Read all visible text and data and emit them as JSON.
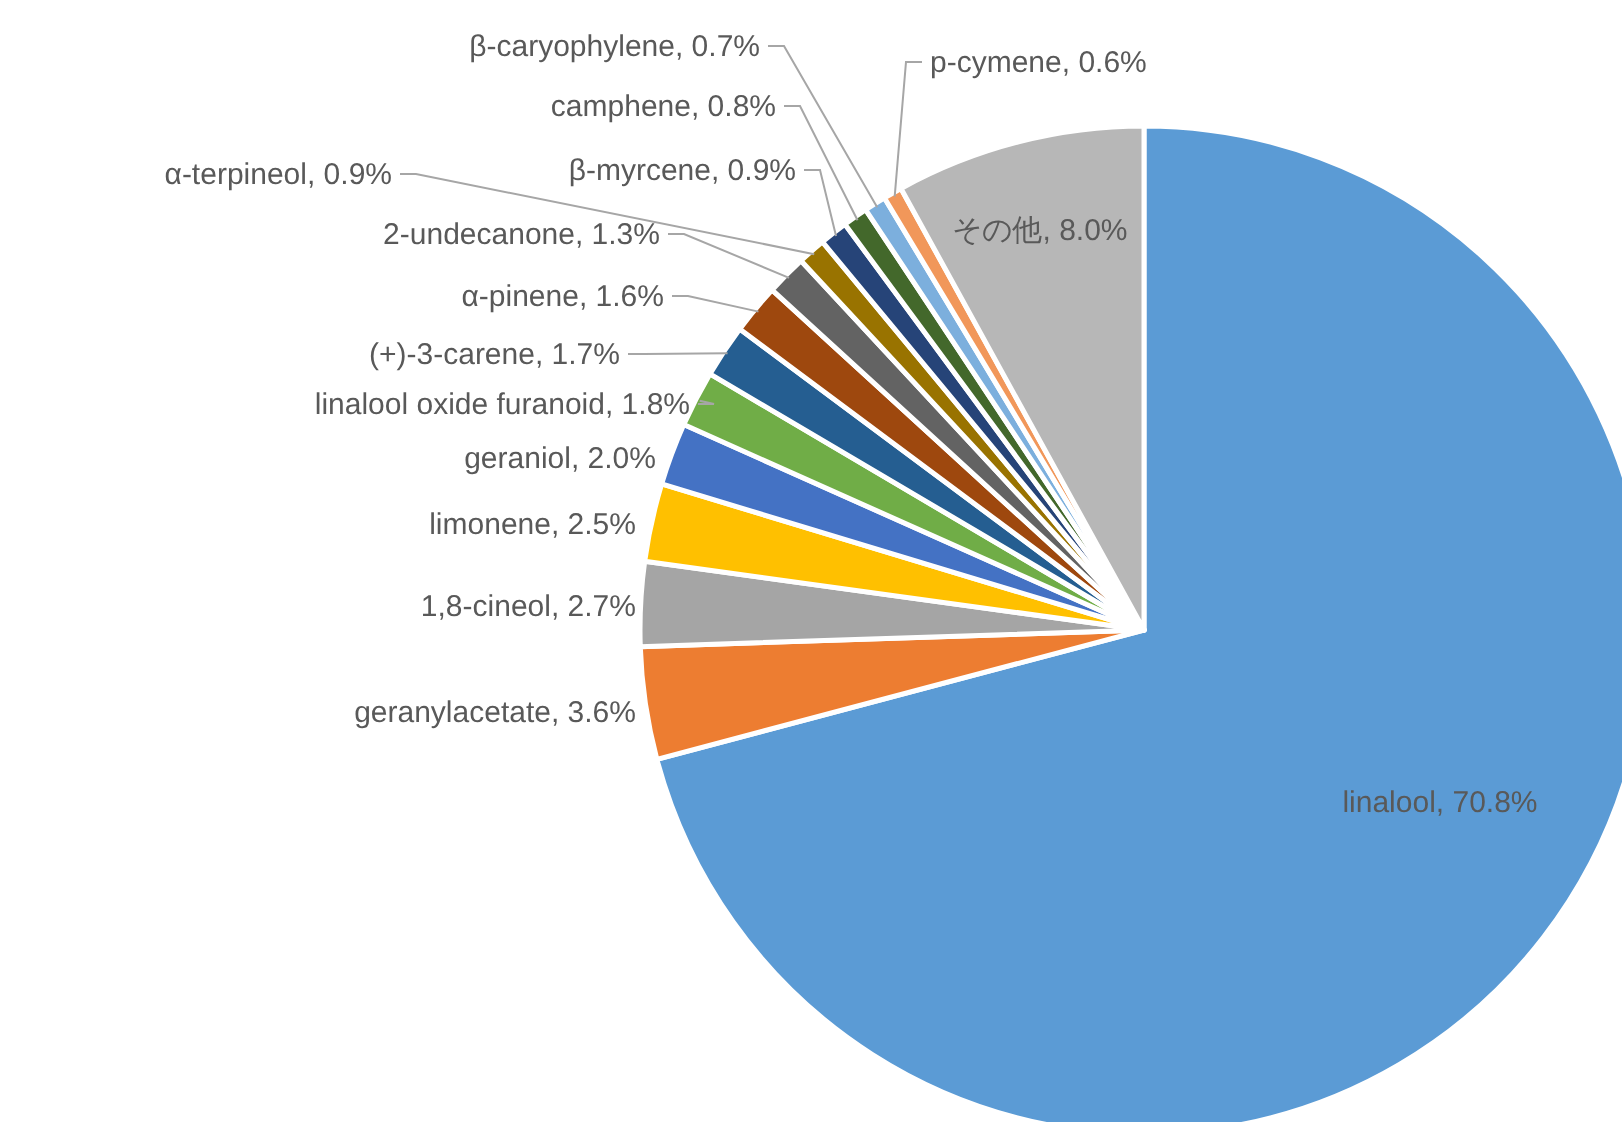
{
  "chart_data": {
    "type": "pie",
    "categories": [
      "linalool",
      "geranylacetate",
      "1,8-cineol",
      "limonene",
      "geraniol",
      "linalool oxide furanoid",
      "(+)-3-carene",
      "α-pinene",
      "2-undecanone",
      "α-terpineol",
      "β-myrcene",
      "camphene",
      "β-caryophylene",
      "p-cymene",
      "その他"
    ],
    "values": [
      70.8,
      3.6,
      2.7,
      2.5,
      2.0,
      1.8,
      1.7,
      1.6,
      1.3,
      0.9,
      0.9,
      0.8,
      0.7,
      0.6,
      8.0
    ],
    "colors": [
      "#5b9bd5",
      "#ed7d31",
      "#a5a5a5",
      "#ffc000",
      "#4472c4",
      "#70ad47",
      "#255e91",
      "#9e480e",
      "#636363",
      "#997300",
      "#264478",
      "#43682b",
      "#7cafdd",
      "#f1975a",
      "#b7b7b7"
    ],
    "value_labels": [
      "70.8%",
      "3.6%",
      "2.7%",
      "2.5%",
      "2.0%",
      "1.8%",
      "1.7%",
      "1.6%",
      "1.3%",
      "0.9%",
      "0.9%",
      "0.8%",
      "0.7%",
      "0.6%",
      "8.0%"
    ]
  }
}
